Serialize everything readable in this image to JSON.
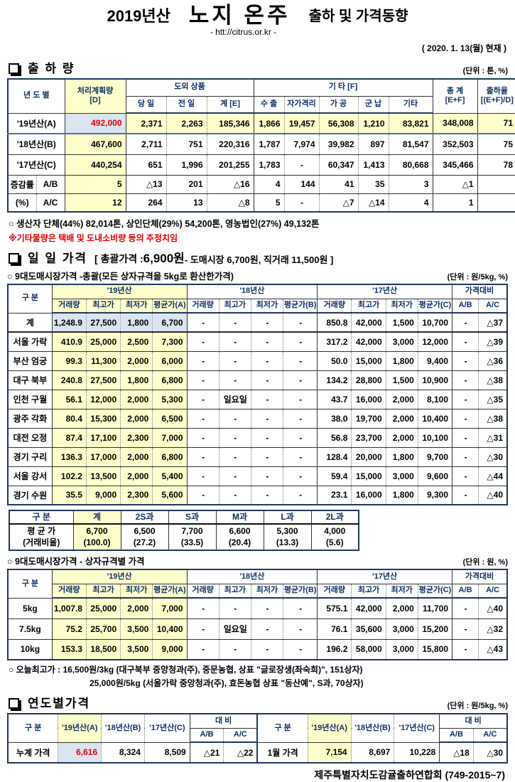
{
  "page": {
    "title_year": "2019년산",
    "title_main": "노지 온주",
    "title_suffix": "출하 및 가격동향",
    "url": "- htt://citrus.or.kr -",
    "date": "( 2020. 1. 13(월) 현재 )",
    "footer": "제주특별자치도감귤출하연합회 (749-2015~7)"
  },
  "colors": {
    "accent_yellow": "#ffffcc",
    "accent_blue": "#dbe5f1",
    "accent_red": "#e00000",
    "header_navy": "#0e2f66"
  },
  "shipment": {
    "title": "출 하 량",
    "unit": "(단위 : 톤, %)",
    "h": {
      "year": "년 도 별",
      "plan": "처리계획량\n[D]",
      "dooe": "도외 상품",
      "today": "당 일",
      "prev": "전 일",
      "sumE": "계 [E]",
      "etc": "기       타 [F]",
      "export": "수 출",
      "quar": "자가격리",
      "proc": "가 공",
      "mil": "군 납",
      "misc": "기타",
      "total": "총  계\n[E+F]",
      "rate": "출하율\n[(E+F)/D]"
    },
    "rows": [
      {
        "label": "'19년산(A)",
        "cls": "rowA",
        "cells": [
          "492,000",
          "2,371",
          "2,263",
          "185,346",
          "1,866",
          "19,457",
          "56,308",
          "1,210",
          "83,821",
          "348,008",
          "71"
        ]
      },
      {
        "label": "'18년산(B)",
        "cells": [
          "467,600",
          "2,711",
          "751",
          "220,316",
          "1,787",
          "7,974",
          "39,982",
          "897",
          "81,547",
          "352,503",
          "75"
        ]
      },
      {
        "label": "'17년산(C)",
        "cells": [
          "440,254",
          "651",
          "1,996",
          "201,255",
          "1,783",
          "-",
          "60,347",
          "1,413",
          "80,668",
          "345,466",
          "78"
        ]
      },
      {
        "label": "증감률",
        "label2": "A/B",
        "cls": "pct",
        "cells": [
          "5",
          "△13",
          "201",
          "△16",
          "4",
          "144",
          "41",
          "35",
          "3",
          "△1",
          ""
        ]
      },
      {
        "label": "(%)",
        "label2": "A/C",
        "cls": "pct",
        "cells": [
          "12",
          "264",
          "13",
          "△8",
          "5",
          "-",
          "△7",
          "△14",
          "4",
          "1",
          ""
        ]
      }
    ],
    "note1": "○ 생산자 단체(44%)  82,014톤,  상인단체(29%)  54,200톤,  영농법인(27%)  49,132톤",
    "note2": "※기타물량은 택배 및 도내소비량 등의 추정치임"
  },
  "daily": {
    "title": "일 일 가격",
    "headline_pre": "[ 총괄가격 : ",
    "headline_price": "6,900원",
    "headline_rest": " - 도매시장 6,700원, 직거래 11,500원 ]",
    "sub1": "○ 9대도매시장가격 -총괄(모든 상자규격을 5kg로 환산한가격)",
    "unit1": "(단위 : 원/5kg, %)",
    "h": {
      "gubun": "구  분",
      "y19": "'19년산",
      "y18": "'18년산",
      "y17": "'17년산",
      "cmp": "가격대비",
      "vol": "거래량",
      "high": "최고가",
      "low": "최저가",
      "avgA": "평균가(A)",
      "avgB": "평균가(B)",
      "avgC": "평균가(C)",
      "ab": "A/B",
      "ac": "A/C"
    },
    "rows": [
      {
        "label": "계",
        "cls": "hl",
        "cells": [
          "1,248.9",
          "27,500",
          "1,800",
          "6,700",
          "-",
          "-",
          "-",
          "-",
          "850.8",
          "42,000",
          "1,500",
          "10,700",
          "-",
          "△37"
        ]
      },
      {
        "label": "서울 가락",
        "cells": [
          "410.9",
          "25,000",
          "2,500",
          "7,300",
          "-",
          "-",
          "-",
          "-",
          "317.2",
          "42,000",
          "3,000",
          "12,000",
          "-",
          "△39"
        ]
      },
      {
        "label": "부산 엄궁",
        "cells": [
          "99.3",
          "11,300",
          "2,000",
          "6,000",
          "-",
          "-",
          "-",
          "-",
          "50.0",
          "15,000",
          "1,800",
          "9,400",
          "-",
          "△36"
        ]
      },
      {
        "label": "대구 북부",
        "cells": [
          "240.8",
          "27,500",
          "1,800",
          "6,800",
          "-",
          "-",
          "-",
          "-",
          "134.2",
          "28,800",
          "1,500",
          "10,900",
          "-",
          "△38"
        ]
      },
      {
        "label": "인천 구월",
        "cells": [
          "56.1",
          "12,000",
          "2,000",
          "5,300",
          "-",
          "일요일",
          "-",
          "-",
          "43.7",
          "16,000",
          "2,000",
          "8,100",
          "-",
          "△35"
        ]
      },
      {
        "label": "광주 각화",
        "cells": [
          "80.4",
          "15,300",
          "2,000",
          "6,500",
          "-",
          "-",
          "-",
          "-",
          "38.0",
          "19,700",
          "2,000",
          "10,400",
          "-",
          "△38"
        ]
      },
      {
        "label": "대전 오정",
        "cells": [
          "87.4",
          "17,100",
          "2,300",
          "7,000",
          "-",
          "-",
          "-",
          "-",
          "56.8",
          "23,700",
          "2,000",
          "10,100",
          "-",
          "△31"
        ]
      },
      {
        "label": "경기 구리",
        "cells": [
          "136.3",
          "17,000",
          "2,000",
          "6,800",
          "-",
          "-",
          "-",
          "-",
          "128.4",
          "20,000",
          "1,800",
          "9,700",
          "-",
          "△30"
        ]
      },
      {
        "label": "서울 강서",
        "cells": [
          "102.2",
          "13,500",
          "2,000",
          "5,400",
          "-",
          "-",
          "-",
          "-",
          "59.4",
          "15,000",
          "3,000",
          "9,600",
          "-",
          "△44"
        ]
      },
      {
        "label": "경기 수원",
        "cells": [
          "35.5",
          "9,000",
          "2,300",
          "5,600",
          "-",
          "-",
          "-",
          "-",
          "23.1",
          "16,000",
          "1,800",
          "9,300",
          "-",
          "△40"
        ]
      }
    ],
    "sizes": {
      "h_gubun": "구  분",
      "h_total": "계",
      "h_2s": "2S과",
      "h_s": "S과",
      "h_m": "M과",
      "h_l": "L과",
      "h_2l": "2L과",
      "row_label": "평 균 가\n(거래비율)",
      "values": [
        "6,700\n(100.0)",
        "6,500\n(27.2)",
        "7,700\n(33.5)",
        "6,600\n(20.4)",
        "5,300\n(13.3)",
        "4,000\n(5.6)"
      ]
    },
    "sub2": "○ 9대도매시장가격 - 상자규격별 가격",
    "unit2": "(단위 : 원, %)",
    "box_rows": [
      {
        "label": "5kg",
        "cells": [
          "1,007.8",
          "25,000",
          "2,000",
          "7,000",
          "-",
          "-",
          "-",
          "-",
          "575.1",
          "42,000",
          "2,000",
          "11,700",
          "-",
          "△40"
        ]
      },
      {
        "label": "7.5kg",
        "cells": [
          "75.2",
          "25,700",
          "3,500",
          "10,400",
          "-",
          "일요일",
          "-",
          "-",
          "76.1",
          "35,600",
          "3,000",
          "15,200",
          "-",
          "△32"
        ]
      },
      {
        "label": "10kg",
        "cells": [
          "153.3",
          "18,500",
          "3,500",
          "9,000",
          "-",
          "-",
          "-",
          "-",
          "196.2",
          "58,000",
          "3,000",
          "15,800",
          "-",
          "△43"
        ]
      }
    ],
    "note1": "○ 오늘최고가 :   16,500원/3kg (대구북부   중앙청과(주),   중문농협,   상표 \"글로장생(좌숙희)\",   151상자)",
    "note2": "25,000원/5kg (서울가락  중앙청과(주),   효돈농협    상표 \"동산예\",   S과,   70상자)"
  },
  "yearly": {
    "title": "연도별가격",
    "unit": "(단위 : 원/5kg, %)",
    "h": {
      "gubun": "구     분",
      "yA": "'19년산(A)",
      "yB": "'18년산(B)",
      "yC": "'17년산(C)",
      "cmp": "대     비",
      "ab": "A/B",
      "ac": "A/C"
    },
    "left": {
      "label": "누계 가격",
      "cells": [
        "6,616",
        "8,324",
        "8,509",
        "△21",
        "△22"
      ]
    },
    "right": {
      "label": "1월 가격",
      "cells": [
        "7,154",
        "8,697",
        "10,228",
        "△18",
        "△30"
      ]
    }
  }
}
